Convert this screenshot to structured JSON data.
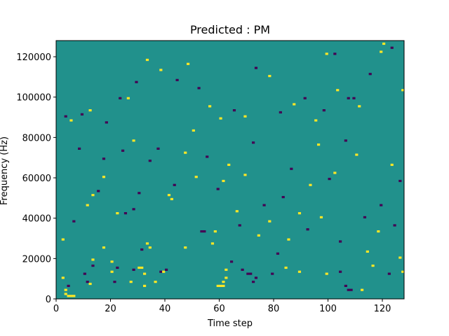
{
  "chart_data": {
    "type": "heatmap",
    "title": "Predicted : PM",
    "xlabel": "Time step",
    "ylabel": "Frequency (Hz)",
    "xlim": [
      0,
      128
    ],
    "ylim": [
      0,
      128000
    ],
    "xticks": [
      0,
      20,
      40,
      60,
      80,
      100,
      120
    ],
    "yticks": [
      0,
      20000,
      40000,
      60000,
      80000,
      100000,
      120000
    ],
    "x_tick_labels": [
      "0",
      "20",
      "40",
      "60",
      "80",
      "100",
      "120"
    ],
    "y_tick_labels": [
      "0",
      "20000",
      "40000",
      "60000",
      "80000",
      "100000",
      "120000"
    ],
    "grid": false,
    "colormap": "viridis",
    "colors": {
      "background": "#21918c",
      "high": "#fde725",
      "low": "#440154"
    },
    "grid_size": {
      "time_steps": 128,
      "frequency_bins": 128,
      "bin_hz": 1000
    },
    "background_value": 0,
    "value_range": [
      -1,
      1
    ],
    "cells": [
      {
        "t": 3,
        "f": 2,
        "v": 1
      },
      {
        "t": 4,
        "f": 1,
        "v": 1
      },
      {
        "t": 5,
        "f": 1,
        "v": 1
      },
      {
        "t": 6,
        "f": 1,
        "v": 1
      },
      {
        "t": 3,
        "f": 4,
        "v": 1
      },
      {
        "t": 2,
        "f": 10,
        "v": 1
      },
      {
        "t": 4,
        "f": 6,
        "v": -1
      },
      {
        "t": 11,
        "f": 8,
        "v": -1
      },
      {
        "t": 10,
        "f": 12,
        "v": -1
      },
      {
        "t": 12,
        "f": 7,
        "v": 1
      },
      {
        "t": 13,
        "f": 16,
        "v": -1
      },
      {
        "t": 13,
        "f": 19,
        "v": 1
      },
      {
        "t": 17,
        "f": 25,
        "v": 1
      },
      {
        "t": 21,
        "f": 8,
        "v": -1
      },
      {
        "t": 20,
        "f": 13,
        "v": 1
      },
      {
        "t": 20,
        "f": 18,
        "v": 1
      },
      {
        "t": 22,
        "f": 15,
        "v": -1
      },
      {
        "t": 27,
        "f": 8,
        "v": 1
      },
      {
        "t": 28,
        "f": 14,
        "v": -1
      },
      {
        "t": 30,
        "f": 15,
        "v": 1
      },
      {
        "t": 31,
        "f": 15,
        "v": 1
      },
      {
        "t": 32,
        "f": 6,
        "v": 1
      },
      {
        "t": 32,
        "f": 12,
        "v": 1
      },
      {
        "t": 31,
        "f": 24,
        "v": -1
      },
      {
        "t": 33,
        "f": 27,
        "v": 1
      },
      {
        "t": 34,
        "f": 25,
        "v": 1
      },
      {
        "t": 36,
        "f": 8,
        "v": 1
      },
      {
        "t": 38,
        "f": 13,
        "v": -1
      },
      {
        "t": 39,
        "f": 13,
        "v": 1
      },
      {
        "t": 40,
        "f": 14,
        "v": -1
      },
      {
        "t": 47,
        "f": 25,
        "v": 1
      },
      {
        "t": 53,
        "f": 33,
        "v": -1
      },
      {
        "t": 54,
        "f": 33,
        "v": -1
      },
      {
        "t": 58,
        "f": 33,
        "v": 1
      },
      {
        "t": 59,
        "f": 6,
        "v": 1
      },
      {
        "t": 60,
        "f": 6,
        "v": 1
      },
      {
        "t": 61,
        "f": 6,
        "v": 1
      },
      {
        "t": 61,
        "f": 8,
        "v": 1
      },
      {
        "t": 62,
        "f": 10,
        "v": 1
      },
      {
        "t": 62,
        "f": 14,
        "v": 1
      },
      {
        "t": 68,
        "f": 14,
        "v": -1
      },
      {
        "t": 70,
        "f": 12,
        "v": -1
      },
      {
        "t": 71,
        "f": 12,
        "v": -1
      },
      {
        "t": 72,
        "f": 8,
        "v": -1
      },
      {
        "t": 73,
        "f": 10,
        "v": -1
      },
      {
        "t": 79,
        "f": 12,
        "v": -1
      },
      {
        "t": 84,
        "f": 15,
        "v": 1
      },
      {
        "t": 89,
        "f": 13,
        "v": 1
      },
      {
        "t": 99,
        "f": 12,
        "v": 1
      },
      {
        "t": 104,
        "f": 13,
        "v": -1
      },
      {
        "t": 106,
        "f": 6,
        "v": -1
      },
      {
        "t": 107,
        "f": 4,
        "v": -1
      },
      {
        "t": 108,
        "f": 4,
        "v": -1
      },
      {
        "t": 112,
        "f": 4,
        "v": 1
      },
      {
        "t": 116,
        "f": 16,
        "v": 1
      },
      {
        "t": 122,
        "f": 12,
        "v": -1
      },
      {
        "t": 127,
        "f": 13,
        "v": 1
      },
      {
        "t": 2,
        "f": 29,
        "v": 1
      },
      {
        "t": 6,
        "f": 38,
        "v": -1
      },
      {
        "t": 11,
        "f": 46,
        "v": 1
      },
      {
        "t": 13,
        "f": 51,
        "v": 1
      },
      {
        "t": 15,
        "f": 53,
        "v": -1
      },
      {
        "t": 17,
        "f": 60,
        "v": 1
      },
      {
        "t": 22,
        "f": 42,
        "v": 1
      },
      {
        "t": 25,
        "f": 42,
        "v": -1
      },
      {
        "t": 28,
        "f": 44,
        "v": -1
      },
      {
        "t": 30,
        "f": 52,
        "v": -1
      },
      {
        "t": 34,
        "f": 68,
        "v": -1
      },
      {
        "t": 37,
        "f": 74,
        "v": -1
      },
      {
        "t": 41,
        "f": 51,
        "v": 1
      },
      {
        "t": 43,
        "f": 56,
        "v": -1
      },
      {
        "t": 47,
        "f": 72,
        "v": 1
      },
      {
        "t": 51,
        "f": 60,
        "v": 1
      },
      {
        "t": 55,
        "f": 70,
        "v": -1
      },
      {
        "t": 59,
        "f": 54,
        "v": -1
      },
      {
        "t": 61,
        "f": 58,
        "v": 1
      },
      {
        "t": 63,
        "f": 66,
        "v": 1
      },
      {
        "t": 66,
        "f": 43,
        "v": 1
      },
      {
        "t": 69,
        "f": 61,
        "v": 1
      },
      {
        "t": 72,
        "f": 77,
        "v": -1
      },
      {
        "t": 76,
        "f": 46,
        "v": -1
      },
      {
        "t": 78,
        "f": 38,
        "v": 1
      },
      {
        "t": 83,
        "f": 50,
        "v": -1
      },
      {
        "t": 86,
        "f": 64,
        "v": -1
      },
      {
        "t": 89,
        "f": 42,
        "v": 1
      },
      {
        "t": 93,
        "f": 56,
        "v": 1
      },
      {
        "t": 96,
        "f": 76,
        "v": 1
      },
      {
        "t": 100,
        "f": 59,
        "v": -1
      },
      {
        "t": 102,
        "f": 62,
        "v": 1
      },
      {
        "t": 106,
        "f": 78,
        "v": -1
      },
      {
        "t": 110,
        "f": 71,
        "v": 1
      },
      {
        "t": 113,
        "f": 40,
        "v": -1
      },
      {
        "t": 119,
        "f": 46,
        "v": -1
      },
      {
        "t": 123,
        "f": 66,
        "v": 1
      },
      {
        "t": 126,
        "f": 58,
        "v": -1
      },
      {
        "t": 3,
        "f": 90,
        "v": -1
      },
      {
        "t": 5,
        "f": 88,
        "v": 1
      },
      {
        "t": 9,
        "f": 91,
        "v": -1
      },
      {
        "t": 12,
        "f": 93,
        "v": 1
      },
      {
        "t": 18,
        "f": 87,
        "v": -1
      },
      {
        "t": 23,
        "f": 99,
        "v": -1
      },
      {
        "t": 26,
        "f": 99,
        "v": 1
      },
      {
        "t": 29,
        "f": 107,
        "v": -1
      },
      {
        "t": 33,
        "f": 118,
        "v": 1
      },
      {
        "t": 38,
        "f": 113,
        "v": 1
      },
      {
        "t": 44,
        "f": 108,
        "v": -1
      },
      {
        "t": 48,
        "f": 116,
        "v": 1
      },
      {
        "t": 52,
        "f": 104,
        "v": -1
      },
      {
        "t": 56,
        "f": 95,
        "v": 1
      },
      {
        "t": 60,
        "f": 89,
        "v": 1
      },
      {
        "t": 65,
        "f": 93,
        "v": -1
      },
      {
        "t": 69,
        "f": 90,
        "v": 1
      },
      {
        "t": 73,
        "f": 114,
        "v": -1
      },
      {
        "t": 78,
        "f": 110,
        "v": 1
      },
      {
        "t": 82,
        "f": 92,
        "v": -1
      },
      {
        "t": 87,
        "f": 96,
        "v": 1
      },
      {
        "t": 91,
        "f": 99,
        "v": -1
      },
      {
        "t": 95,
        "f": 88,
        "v": 1
      },
      {
        "t": 98,
        "f": 93,
        "v": -1
      },
      {
        "t": 103,
        "f": 103,
        "v": 1
      },
      {
        "t": 107,
        "f": 99,
        "v": -1
      },
      {
        "t": 109,
        "f": 99,
        "v": -1
      },
      {
        "t": 111,
        "f": 95,
        "v": 1
      },
      {
        "t": 115,
        "f": 111,
        "v": -1
      },
      {
        "t": 119,
        "f": 122,
        "v": 1
      },
      {
        "t": 123,
        "f": 124,
        "v": -1
      },
      {
        "t": 127,
        "f": 103,
        "v": 1
      },
      {
        "t": 99,
        "f": 121,
        "v": 1
      },
      {
        "t": 102,
        "f": 121,
        "v": -1
      },
      {
        "t": 120,
        "f": 126,
        "v": 1
      },
      {
        "t": 8,
        "f": 74,
        "v": -1
      },
      {
        "t": 17,
        "f": 69,
        "v": -1
      },
      {
        "t": 24,
        "f": 73,
        "v": -1
      },
      {
        "t": 28,
        "f": 78,
        "v": 1
      },
      {
        "t": 42,
        "f": 49,
        "v": 1
      },
      {
        "t": 50,
        "f": 83,
        "v": 1
      },
      {
        "t": 57,
        "f": 27,
        "v": 1
      },
      {
        "t": 64,
        "f": 18,
        "v": -1
      },
      {
        "t": 67,
        "f": 36,
        "v": -1
      },
      {
        "t": 74,
        "f": 31,
        "v": 1
      },
      {
        "t": 81,
        "f": 22,
        "v": -1
      },
      {
        "t": 85,
        "f": 29,
        "v": 1
      },
      {
        "t": 92,
        "f": 34,
        "v": -1
      },
      {
        "t": 97,
        "f": 40,
        "v": 1
      },
      {
        "t": 104,
        "f": 28,
        "v": -1
      },
      {
        "t": 114,
        "f": 23,
        "v": 1
      },
      {
        "t": 118,
        "f": 33,
        "v": 1
      },
      {
        "t": 124,
        "f": 36,
        "v": -1
      },
      {
        "t": 126,
        "f": 20,
        "v": 1
      }
    ]
  }
}
